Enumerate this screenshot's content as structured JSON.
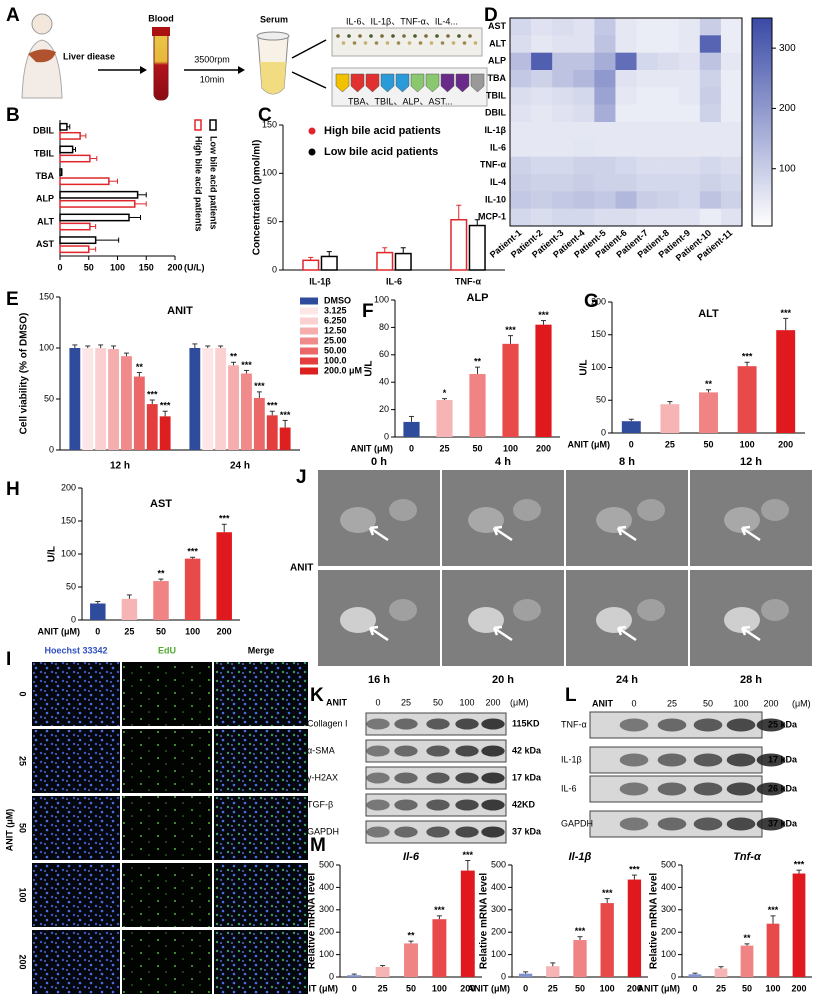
{
  "panel_labels": [
    "A",
    "B",
    "C",
    "D",
    "E",
    "F",
    "G",
    "H",
    "I",
    "J",
    "K",
    "L",
    "M"
  ],
  "schematic": {
    "liver": "Liver diease",
    "blood": "Blood",
    "speed": "3500rpm",
    "time": "10min",
    "serum": "Serum",
    "cytokines": "IL-6、IL-1β、TNF-α、IL-4...",
    "biochem": "TBA、TBIL、ALP、AST..."
  },
  "chart_data": [
    {
      "type": "bar",
      "orientation": "horizontal",
      "style": "outline",
      "categories": [
        "DBIL",
        "TBIL",
        "TBA",
        "ALP",
        "ALT",
        "AST"
      ],
      "series": [
        {
          "name": "High bile acid patients",
          "color": "#e0262b",
          "values": [
            35,
            52,
            85,
            130,
            52,
            50
          ],
          "errors": [
            10,
            12,
            15,
            20,
            10,
            12
          ]
        },
        {
          "name": "Low bile acid patients",
          "color": "#000000",
          "values": [
            12,
            22,
            3,
            135,
            120,
            62
          ],
          "errors": [
            5,
            5,
            0,
            15,
            20,
            40
          ]
        }
      ],
      "xlim": [
        0,
        200
      ],
      "xticks": [
        0,
        50,
        100,
        150,
        200
      ],
      "x_label": "(U/L)",
      "legend": "right"
    },
    {
      "type": "bar",
      "style": "outline",
      "categories": [
        "IL-1β",
        "IL-6",
        "TNF-α"
      ],
      "series": [
        {
          "name": "High bile acid patients",
          "color": "#e0262b",
          "values": [
            10,
            18,
            52
          ],
          "errors": [
            3,
            5,
            15
          ]
        },
        {
          "name": "Low bile acid patients",
          "color": "#000000",
          "values": [
            14,
            17,
            46
          ],
          "errors": [
            5,
            6,
            6
          ]
        }
      ],
      "ylim": [
        0,
        150
      ],
      "yticks": [
        0,
        50,
        100,
        150
      ],
      "y_label": "Concentration (pmol/ml)",
      "legend": "upper left"
    },
    {
      "type": "heatmap",
      "rows": [
        "AST",
        "ALT",
        "ALP",
        "TBA",
        "TBIL",
        "DBIL",
        "IL-1β",
        "IL-6",
        "TNF-α",
        "IL-4",
        "IL-10",
        "MCP-1"
      ],
      "columns": [
        "Patient-1",
        "Patient-2",
        "Patient-3",
        "Patient-4",
        "Patient-5",
        "Patient-6",
        "Patient-7",
        "Patient-8",
        "Patient-9",
        "Patient-10",
        "Patient-11"
      ],
      "values": [
        [
          80,
          60,
          70,
          60,
          110,
          50,
          40,
          40,
          50,
          100,
          40
        ],
        [
          70,
          50,
          60,
          60,
          120,
          50,
          40,
          40,
          50,
          300,
          40
        ],
        [
          130,
          310,
          120,
          120,
          160,
          280,
          80,
          70,
          60,
          120,
          50
        ],
        [
          110,
          90,
          120,
          140,
          200,
          60,
          50,
          50,
          50,
          90,
          40
        ],
        [
          70,
          60,
          70,
          80,
          180,
          50,
          40,
          40,
          50,
          100,
          40
        ],
        [
          60,
          50,
          60,
          70,
          160,
          40,
          40,
          40,
          40,
          90,
          40
        ],
        [
          50,
          50,
          50,
          50,
          50,
          50,
          50,
          50,
          50,
          50,
          50
        ],
        [
          50,
          50,
          50,
          55,
          50,
          50,
          50,
          50,
          50,
          50,
          50
        ],
        [
          90,
          80,
          80,
          90,
          90,
          80,
          70,
          70,
          70,
          80,
          70
        ],
        [
          100,
          90,
          90,
          100,
          90,
          90,
          80,
          80,
          80,
          90,
          80
        ],
        [
          110,
          100,
          110,
          120,
          110,
          140,
          100,
          90,
          80,
          120,
          90
        ],
        [
          80,
          70,
          80,
          80,
          70,
          70,
          60,
          60,
          60,
          40,
          60
        ]
      ],
      "colors": [
        "#ffffff",
        "#3a4aa6"
      ],
      "zlim": [
        5,
        350
      ],
      "zticks": [
        100,
        200,
        300
      ]
    },
    {
      "type": "bar",
      "title": "ANIT",
      "categories": [
        "12 h",
        "24 h"
      ],
      "series": [
        {
          "name": "DMSO",
          "color": "#2f4b9b",
          "values": [
            100,
            100
          ],
          "errors": [
            3,
            4
          ],
          "significance": [
            null,
            null
          ]
        },
        {
          "name": "3.125",
          "color": "#fde6e6",
          "values": [
            100,
            100
          ],
          "errors": [
            2,
            2
          ],
          "significance": [
            null,
            null
          ]
        },
        {
          "name": "6.250",
          "color": "#fbd0d0",
          "values": [
            100,
            100
          ],
          "errors": [
            3,
            2
          ],
          "significance": [
            null,
            null
          ]
        },
        {
          "name": "12.50",
          "color": "#f6adad",
          "values": [
            99,
            83
          ],
          "errors": [
            3,
            3
          ],
          "significance": [
            null,
            "**"
          ]
        },
        {
          "name": "25.00",
          "color": "#f18a8a",
          "values": [
            92,
            75
          ],
          "errors": [
            3,
            3
          ],
          "significance": [
            null,
            "***"
          ]
        },
        {
          "name": "50.00",
          "color": "#ec6767",
          "values": [
            72,
            51
          ],
          "errors": [
            4,
            6
          ],
          "significance": [
            "**",
            "***"
          ]
        },
        {
          "name": "100.0",
          "color": "#e43d3d",
          "values": [
            45,
            34
          ],
          "errors": [
            4,
            4
          ],
          "significance": [
            "***",
            "***"
          ]
        },
        {
          "name": "200.0 μM",
          "color": "#dd1f1f",
          "values": [
            33,
            22
          ],
          "errors": [
            5,
            7
          ],
          "significance": [
            "***",
            "***"
          ]
        }
      ],
      "ylim": [
        0,
        150
      ],
      "yticks": [
        0,
        50,
        100,
        150
      ],
      "y_label": "Cell viability (% of DMSO)",
      "legend": "right"
    },
    {
      "type": "bar",
      "title": "ALP",
      "categories": [
        "0",
        "25",
        "50",
        "100",
        "200"
      ],
      "values": [
        11,
        27,
        46,
        68,
        82
      ],
      "errors": [
        4,
        1,
        5,
        6,
        3
      ],
      "colors": [
        "#2f4b9b",
        "#f7b4b4",
        "#f08383",
        "#e84a4a",
        "#e0191f"
      ],
      "significance": [
        null,
        "*",
        "**",
        "***",
        "***"
      ],
      "ylim": [
        0,
        100
      ],
      "yticks": [
        0,
        20,
        40,
        60,
        80,
        100
      ],
      "y_label": "U/L",
      "x_label": "ANIT (μM)"
    },
    {
      "type": "bar",
      "title": "ALT",
      "categories": [
        "0",
        "25",
        "50",
        "100",
        "200"
      ],
      "values": [
        18,
        44,
        62,
        102,
        157
      ],
      "errors": [
        3,
        4,
        4,
        6,
        18
      ],
      "colors": [
        "#2f4b9b",
        "#f7b4b4",
        "#f08383",
        "#e84a4a",
        "#e0191f"
      ],
      "significance": [
        null,
        null,
        "**",
        "***",
        "***"
      ],
      "ylim": [
        0,
        200
      ],
      "yticks": [
        0,
        50,
        100,
        150,
        200
      ],
      "y_label": "U/L",
      "x_label": "ANIT (μM)"
    },
    {
      "type": "bar",
      "title": "AST",
      "categories": [
        "0",
        "25",
        "50",
        "100",
        "200"
      ],
      "values": [
        25,
        32,
        59,
        93,
        133
      ],
      "errors": [
        3,
        6,
        3,
        2,
        12
      ],
      "colors": [
        "#2f4b9b",
        "#f7b4b4",
        "#f08383",
        "#e84a4a",
        "#e0191f"
      ],
      "significance": [
        null,
        null,
        "**",
        "***",
        "***"
      ],
      "ylim": [
        0,
        200
      ],
      "yticks": [
        0,
        50,
        100,
        150,
        200
      ],
      "y_label": "U/L",
      "x_label": "ANIT (μM)"
    },
    {
      "type": "bar",
      "title": "Il-6",
      "title_italic": true,
      "categories": [
        "0",
        "25",
        "50",
        "100",
        "200"
      ],
      "values": [
        8,
        45,
        150,
        258,
        475
      ],
      "errors": [
        5,
        6,
        10,
        15,
        45
      ],
      "colors": [
        "#8090d0",
        "#f7b4b4",
        "#f08383",
        "#e84a4a",
        "#e0191f"
      ],
      "significance": [
        null,
        null,
        "**",
        "***",
        "***"
      ],
      "ylim": [
        0,
        500
      ],
      "yticks": [
        0,
        100,
        200,
        300,
        400,
        500
      ],
      "y_label": "Relative mRNA level",
      "x_label": "ANIT (μM)"
    },
    {
      "type": "bar",
      "title": "Il-1β",
      "title_italic": true,
      "categories": [
        "0",
        "25",
        "50",
        "100",
        "200"
      ],
      "values": [
        15,
        48,
        165,
        330,
        435
      ],
      "errors": [
        8,
        15,
        15,
        20,
        20
      ],
      "colors": [
        "#8090d0",
        "#f7b4b4",
        "#f08383",
        "#e84a4a",
        "#e0191f"
      ],
      "significance": [
        null,
        null,
        "***",
        "***",
        "***"
      ],
      "ylim": [
        0,
        500
      ],
      "yticks": [
        0,
        100,
        200,
        300,
        400,
        500
      ],
      "y_label": "Relative mRNA level",
      "x_label": "ANIT (μM)"
    },
    {
      "type": "bar",
      "title": "Tnf-α",
      "title_italic": true,
      "categories": [
        "0",
        "25",
        "50",
        "100",
        "200"
      ],
      "values": [
        12,
        38,
        140,
        238,
        462
      ],
      "errors": [
        5,
        8,
        8,
        35,
        15
      ],
      "colors": [
        "#8090d0",
        "#f7b4b4",
        "#f08383",
        "#e84a4a",
        "#e0191f"
      ],
      "significance": [
        null,
        null,
        "**",
        "***",
        "***"
      ],
      "ylim": [
        0,
        500
      ],
      "yticks": [
        0,
        100,
        200,
        300,
        400,
        500
      ],
      "y_label": "Relative mRNA level",
      "x_label": "ANIT (μM)"
    }
  ],
  "microscopy_j": {
    "top_times": [
      "0 h",
      "4 h",
      "8 h",
      "12 h"
    ],
    "bottom_times": [
      "16 h",
      "20 h",
      "24 h",
      "28 h"
    ],
    "row_label": "ANIT"
  },
  "edu_i": {
    "columns": [
      "Hoechst 33342",
      "EdU",
      "Merge"
    ],
    "rows": [
      "0",
      "25",
      "50",
      "100",
      "200"
    ],
    "axis_label": "ANIT (μM)"
  },
  "blot_k": {
    "treatment": "ANIT",
    "doses": [
      "0",
      "25",
      "50",
      "100",
      "200"
    ],
    "unit": "(μM)",
    "proteins": [
      {
        "name": "Collagen I",
        "size": "115KD"
      },
      {
        "name": "α-SMA",
        "size": "42 kDa"
      },
      {
        "name": "γ-H2AX",
        "size": "17 kDa"
      },
      {
        "name": "TGF-β",
        "size": "42KD"
      },
      {
        "name": "GAPDH",
        "size": "37 kDa"
      }
    ]
  },
  "blot_l": {
    "treatment": "ANIT",
    "doses": [
      "0",
      "25",
      "50",
      "100",
      "200"
    ],
    "unit": "(μM)",
    "proteins": [
      {
        "name": "TNF-α",
        "size": "25 kDa"
      },
      {
        "name": "IL-1β",
        "size": "17 kDa"
      },
      {
        "name": "IL-6",
        "size": "26 kDa"
      },
      {
        "name": "GAPDH",
        "size": "37 kDa"
      }
    ]
  }
}
